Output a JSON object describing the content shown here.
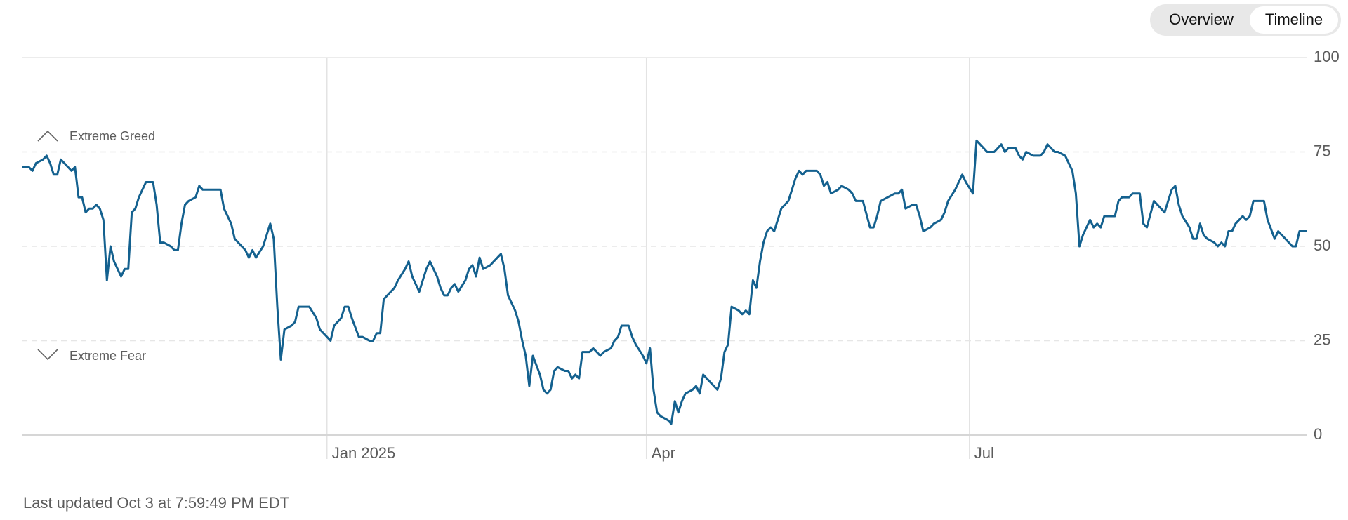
{
  "tabs": [
    "Overview",
    "Timeline"
  ],
  "footer": "Last updated Oct 3 at 7:59:49 PM EDT",
  "chart_data": {
    "type": "line",
    "annotations": [
      "Extreme Greed",
      "Extreme Fear"
    ],
    "color": "#14618f",
    "x": [
      -86,
      -84,
      -83,
      -82,
      -80,
      -79,
      -78,
      -77,
      -76,
      -75,
      -74,
      -72,
      -71,
      -70,
      -69,
      -68,
      -67,
      -66,
      -65,
      -64,
      -63,
      -62,
      -61,
      -60,
      -58,
      -57,
      -56,
      -55,
      -54,
      -53,
      -51,
      -49,
      -48,
      -47,
      -46,
      -44,
      -43,
      -42,
      -41,
      -40,
      -39,
      -37,
      -36,
      -35,
      -33,
      -32,
      -30,
      -29,
      -27,
      -26,
      -24,
      -23,
      -22,
      -21,
      -20,
      -18,
      -17,
      -16,
      -15,
      -14,
      -13,
      -12,
      -10,
      -9,
      -8,
      -7,
      -5,
      -3,
      -2,
      0,
      1,
      2,
      4,
      5,
      6,
      7,
      9,
      10,
      12,
      13,
      14,
      15,
      16,
      17,
      19,
      20,
      22,
      23,
      24,
      26,
      27,
      28,
      29,
      31,
      32,
      33,
      34,
      35,
      36,
      37,
      39,
      40,
      41,
      42,
      43,
      44,
      46,
      47,
      48,
      49,
      50,
      51,
      53,
      54,
      55,
      56,
      57,
      58,
      60,
      61,
      62,
      63,
      64,
      65,
      67,
      68,
      69,
      70,
      71,
      72,
      74,
      75,
      76,
      77,
      78,
      80,
      81,
      82,
      83,
      85,
      86,
      87,
      89,
      90,
      91,
      92,
      93,
      94,
      96,
      97,
      98,
      99,
      100,
      101,
      103,
      104,
      105,
      106,
      107,
      109,
      110,
      111,
      112,
      113,
      114,
      116,
      117,
      118,
      119,
      120,
      121,
      122,
      123,
      124,
      125,
      126,
      127,
      128,
      130,
      131,
      132,
      133,
      134,
      135,
      136,
      138,
      139,
      140,
      141,
      142,
      144,
      145,
      147,
      148,
      149,
      150,
      151,
      153,
      154,
      155,
      156,
      158,
      160,
      161,
      162,
      163,
      165,
      166,
      167,
      168,
      170,
      171,
      173,
      174,
      175,
      177,
      178,
      179,
      180,
      182,
      183,
      184,
      186,
      188,
      189,
      190,
      191,
      192,
      194,
      195,
      196,
      197,
      199,
      201,
      202,
      203,
      205,
      206,
      208,
      210,
      211,
      212,
      213,
      215,
      216,
      217,
      218,
      219,
      220,
      222,
      223,
      224,
      226,
      227,
      229,
      230,
      231,
      233,
      234,
      236,
      237,
      238,
      239,
      240,
      241,
      243,
      244,
      245,
      246,
      247,
      248,
      250,
      251,
      252,
      253,
      254,
      255,
      256,
      258,
      259,
      260,
      261,
      262,
      264,
      265,
      267,
      268,
      269,
      270,
      272,
      273,
      274,
      276
    ],
    "values": [
      71,
      71,
      70,
      72,
      73,
      74,
      72,
      69,
      69,
      73,
      72,
      70,
      71,
      63,
      63,
      59,
      60,
      60,
      61,
      60,
      57,
      41,
      50,
      46,
      42,
      44,
      44,
      59,
      60,
      63,
      67,
      67,
      61,
      51,
      51,
      50,
      49,
      49,
      56,
      61,
      62,
      63,
      66,
      65,
      65,
      65,
      65,
      60,
      56,
      52,
      50,
      49,
      47,
      49,
      47,
      50,
      53,
      56,
      52,
      34,
      20,
      28,
      29,
      30,
      34,
      34,
      34,
      31,
      28,
      26,
      25,
      29,
      31,
      34,
      34,
      31,
      26,
      26,
      25,
      25,
      27,
      27,
      36,
      37,
      39,
      41,
      44,
      46,
      42,
      38,
      41,
      44,
      46,
      42,
      39,
      37,
      37,
      39,
      40,
      38,
      41,
      44,
      45,
      42,
      47,
      44,
      45,
      46,
      47,
      48,
      44,
      37,
      33,
      30,
      25,
      21,
      13,
      21,
      16,
      12,
      11,
      12,
      17,
      18,
      17,
      17,
      15,
      16,
      15,
      22,
      22,
      23,
      22,
      21,
      22,
      23,
      25,
      26,
      29,
      29,
      26,
      24,
      21,
      19,
      23,
      12,
      6,
      5,
      4,
      3,
      9,
      6,
      9,
      11,
      12,
      13,
      11,
      16,
      15,
      13,
      12,
      15,
      22,
      24,
      34,
      33,
      32,
      33,
      32,
      41,
      39,
      46,
      51,
      54,
      55,
      54,
      57,
      60,
      62,
      65,
      68,
      70,
      69,
      70,
      70,
      70,
      69,
      66,
      67,
      64,
      65,
      66,
      65,
      64,
      62,
      62,
      62,
      55,
      55,
      58,
      62,
      63,
      64,
      64,
      65,
      60,
      61,
      61,
      58,
      54,
      55,
      56,
      57,
      59,
      62,
      65,
      67,
      69,
      67,
      64,
      78,
      77,
      75,
      75,
      76,
      77,
      75,
      76,
      76,
      74,
      73,
      75,
      74,
      74,
      75,
      77,
      75,
      75,
      74,
      70,
      64,
      50,
      53,
      57,
      55,
      56,
      55,
      58,
      58,
      58,
      62,
      63,
      63,
      64,
      64,
      56,
      55,
      62,
      61,
      59,
      62,
      65,
      66,
      61,
      58,
      55,
      52,
      52,
      56,
      53,
      52,
      51,
      50,
      51,
      50,
      54,
      54,
      56,
      58,
      57,
      58,
      62,
      62,
      62,
      57,
      52,
      54,
      53,
      52,
      50,
      50,
      54,
      54
    ],
    "xlim": [
      -86,
      276
    ],
    "xticks": [
      {
        "value": 0,
        "label": "Jan 2025"
      },
      {
        "value": 90,
        "label": "Apr"
      },
      {
        "value": 181,
        "label": "Jul"
      }
    ],
    "ylim": [
      0,
      100
    ],
    "yticks": [
      0,
      25,
      50,
      75,
      100
    ],
    "grid": true
  }
}
